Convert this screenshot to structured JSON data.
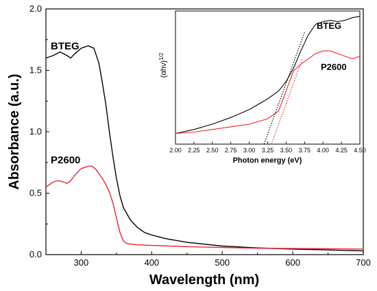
{
  "chart_data": [
    {
      "type": "line",
      "xlabel": "Wavelength (nm)",
      "ylabel": "Absorbance (a.u.)",
      "xlim": [
        250,
        700
      ],
      "ylim": [
        0.0,
        2.0
      ],
      "xticks": [
        300,
        400,
        500,
        600,
        700
      ],
      "yticks": [
        0.0,
        0.5,
        1.0,
        1.5,
        2.0
      ],
      "xtick_labels": [
        "300",
        "400",
        "500",
        "600",
        "700"
      ],
      "ytick_labels": [
        "0.0",
        "0.5",
        "1.0",
        "1.5",
        "2.0"
      ],
      "series": [
        {
          "name": "BTEG",
          "color": "#000000",
          "x": [
            250,
            260,
            270,
            280,
            285,
            290,
            300,
            310,
            318,
            325,
            330,
            335,
            340,
            345,
            350,
            355,
            360,
            370,
            380,
            390,
            400,
            420,
            450,
            500,
            550,
            600,
            650,
            700
          ],
          "y": [
            1.6,
            1.62,
            1.65,
            1.62,
            1.6,
            1.63,
            1.68,
            1.7,
            1.68,
            1.56,
            1.4,
            1.22,
            1.0,
            0.8,
            0.62,
            0.48,
            0.38,
            0.28,
            0.22,
            0.18,
            0.16,
            0.13,
            0.1,
            0.07,
            0.055,
            0.045,
            0.038,
            0.03
          ]
        },
        {
          "name": "P2600",
          "color": "#e8262b",
          "x": [
            250,
            260,
            265,
            270,
            275,
            280,
            285,
            290,
            300,
            310,
            315,
            320,
            325,
            330,
            335,
            340,
            345,
            350,
            355,
            360,
            365,
            370,
            380,
            400,
            450,
            500,
            550,
            600,
            650,
            700
          ],
          "y": [
            0.55,
            0.59,
            0.6,
            0.6,
            0.59,
            0.58,
            0.6,
            0.64,
            0.7,
            0.72,
            0.72,
            0.7,
            0.66,
            0.62,
            0.57,
            0.51,
            0.42,
            0.3,
            0.18,
            0.11,
            0.09,
            0.085,
            0.08,
            0.075,
            0.065,
            0.058,
            0.052,
            0.05,
            0.048,
            0.045
          ]
        }
      ],
      "annotations": [
        "BTEG",
        "P2600"
      ]
    },
    {
      "type": "line",
      "xlabel": "Photon energy (eV)",
      "ylabel": "(αhν)1/2",
      "ylabel_parts": {
        "base": "(αhν)",
        "superscript": "1/2"
      },
      "xlim": [
        2.0,
        4.5
      ],
      "xticks": [
        2.0,
        2.25,
        2.5,
        2.75,
        3.0,
        3.25,
        3.5,
        3.75,
        4.0,
        4.25,
        4.5
      ],
      "xtick_labels": [
        "2.00",
        "2.25",
        "2.50",
        "2.75",
        "3.00",
        "3.25",
        "3.50",
        "3.75",
        "4.00",
        "4.25",
        "4.50"
      ],
      "ylim": [
        0,
        1
      ],
      "series": [
        {
          "name": "BTEG",
          "color": "#000000",
          "x": [
            2.0,
            2.25,
            2.5,
            2.75,
            3.0,
            3.25,
            3.4,
            3.5,
            3.6,
            3.7,
            3.8,
            3.9,
            4.0,
            4.1,
            4.2,
            4.3,
            4.4,
            4.5
          ],
          "y": [
            0.08,
            0.11,
            0.15,
            0.2,
            0.26,
            0.34,
            0.4,
            0.47,
            0.57,
            0.7,
            0.82,
            0.9,
            0.92,
            0.93,
            0.92,
            0.93,
            0.95,
            0.96
          ]
        },
        {
          "name": "P2600",
          "color": "#e8262b",
          "x": [
            2.0,
            2.25,
            2.5,
            2.75,
            3.0,
            3.25,
            3.4,
            3.5,
            3.6,
            3.7,
            3.8,
            3.9,
            4.0,
            4.1,
            4.2,
            4.3,
            4.4,
            4.5
          ],
          "y": [
            0.08,
            0.09,
            0.11,
            0.13,
            0.15,
            0.19,
            0.25,
            0.4,
            0.55,
            0.6,
            0.64,
            0.68,
            0.7,
            0.7,
            0.68,
            0.66,
            0.64,
            0.66
          ]
        }
      ],
      "tangents": [
        {
          "series": "BTEG",
          "x": [
            3.2,
            3.75
          ],
          "y": [
            0.0,
            0.84
          ],
          "color": "#000000"
        },
        {
          "series": "P2600",
          "x": [
            3.3,
            3.72
          ],
          "y": [
            0.0,
            0.64
          ],
          "color": "#e8262b"
        }
      ],
      "annotations": [
        "BTEG",
        "P2600"
      ]
    }
  ]
}
